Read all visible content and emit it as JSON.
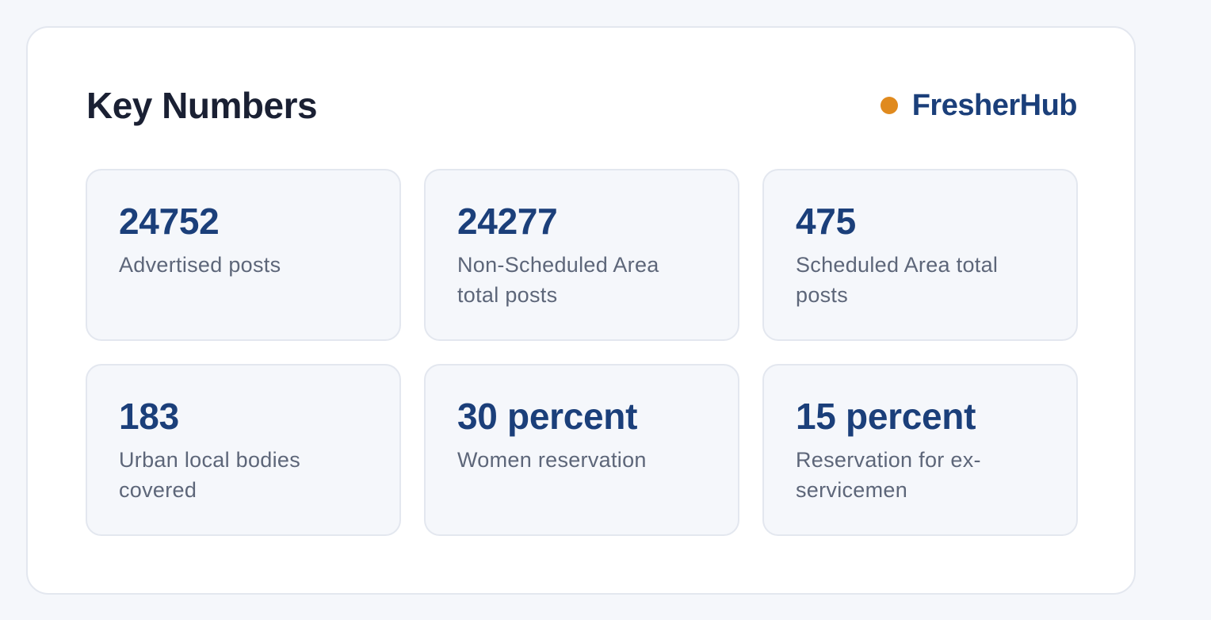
{
  "header": {
    "title": "Key Numbers",
    "brand": "FresherHub"
  },
  "stats": [
    {
      "value": "24752",
      "label": "Advertised posts"
    },
    {
      "value": "24277",
      "label": "Non-Scheduled Area total posts"
    },
    {
      "value": "475",
      "label": "Scheduled Area total posts"
    },
    {
      "value": "183",
      "label": "Urban local bodies covered"
    },
    {
      "value": "30 percent",
      "label": "Women reservation"
    },
    {
      "value": "15 percent",
      "label": "Reservation for ex-servicemen"
    }
  ]
}
